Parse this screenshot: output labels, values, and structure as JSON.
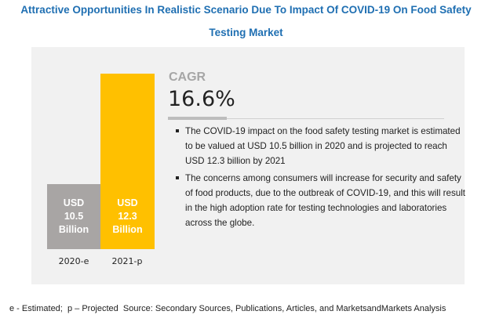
{
  "title_line1": "Attractive Opportunities In Realistic Scenario Due To Impact Of COVID-19 On Food Safety",
  "title_line2": "Testing Market",
  "chart_data": {
    "type": "bar",
    "title": "Attractive Opportunities In Realistic Scenario Due To Impact Of COVID-19 On Food Safety Testing Market",
    "categories": [
      "2020-e",
      "2021-p"
    ],
    "values": [
      10.5,
      12.3
    ],
    "unit": "USD Billion",
    "colors": [
      "#a8a5a4",
      "#ffc000"
    ],
    "data_labels": [
      {
        "line1": "USD",
        "line2": "10.5",
        "line3": "Billion"
      },
      {
        "line1": "USD",
        "line2": "12.3",
        "line3": "Billion"
      }
    ],
    "grid": false
  },
  "cagr": {
    "label": "CAGR",
    "value": "16.6%"
  },
  "bullets": [
    "The COVID-19 impact on the food safety testing market is estimated to be valued at USD  10.5 billion in 2020 and is projected to reach USD  12.3 billion by 2021",
    "The concerns among consumers will increase for security and safety of food products, due to the outbreak of COVID-19, and this will result in the high adoption rate for testing technologies and laboratories across the globe."
  ],
  "footer": "e - Estimated;  p – Projected  Source: Secondary Sources, Publications, Articles, and MarketsandMarkets Analysis"
}
